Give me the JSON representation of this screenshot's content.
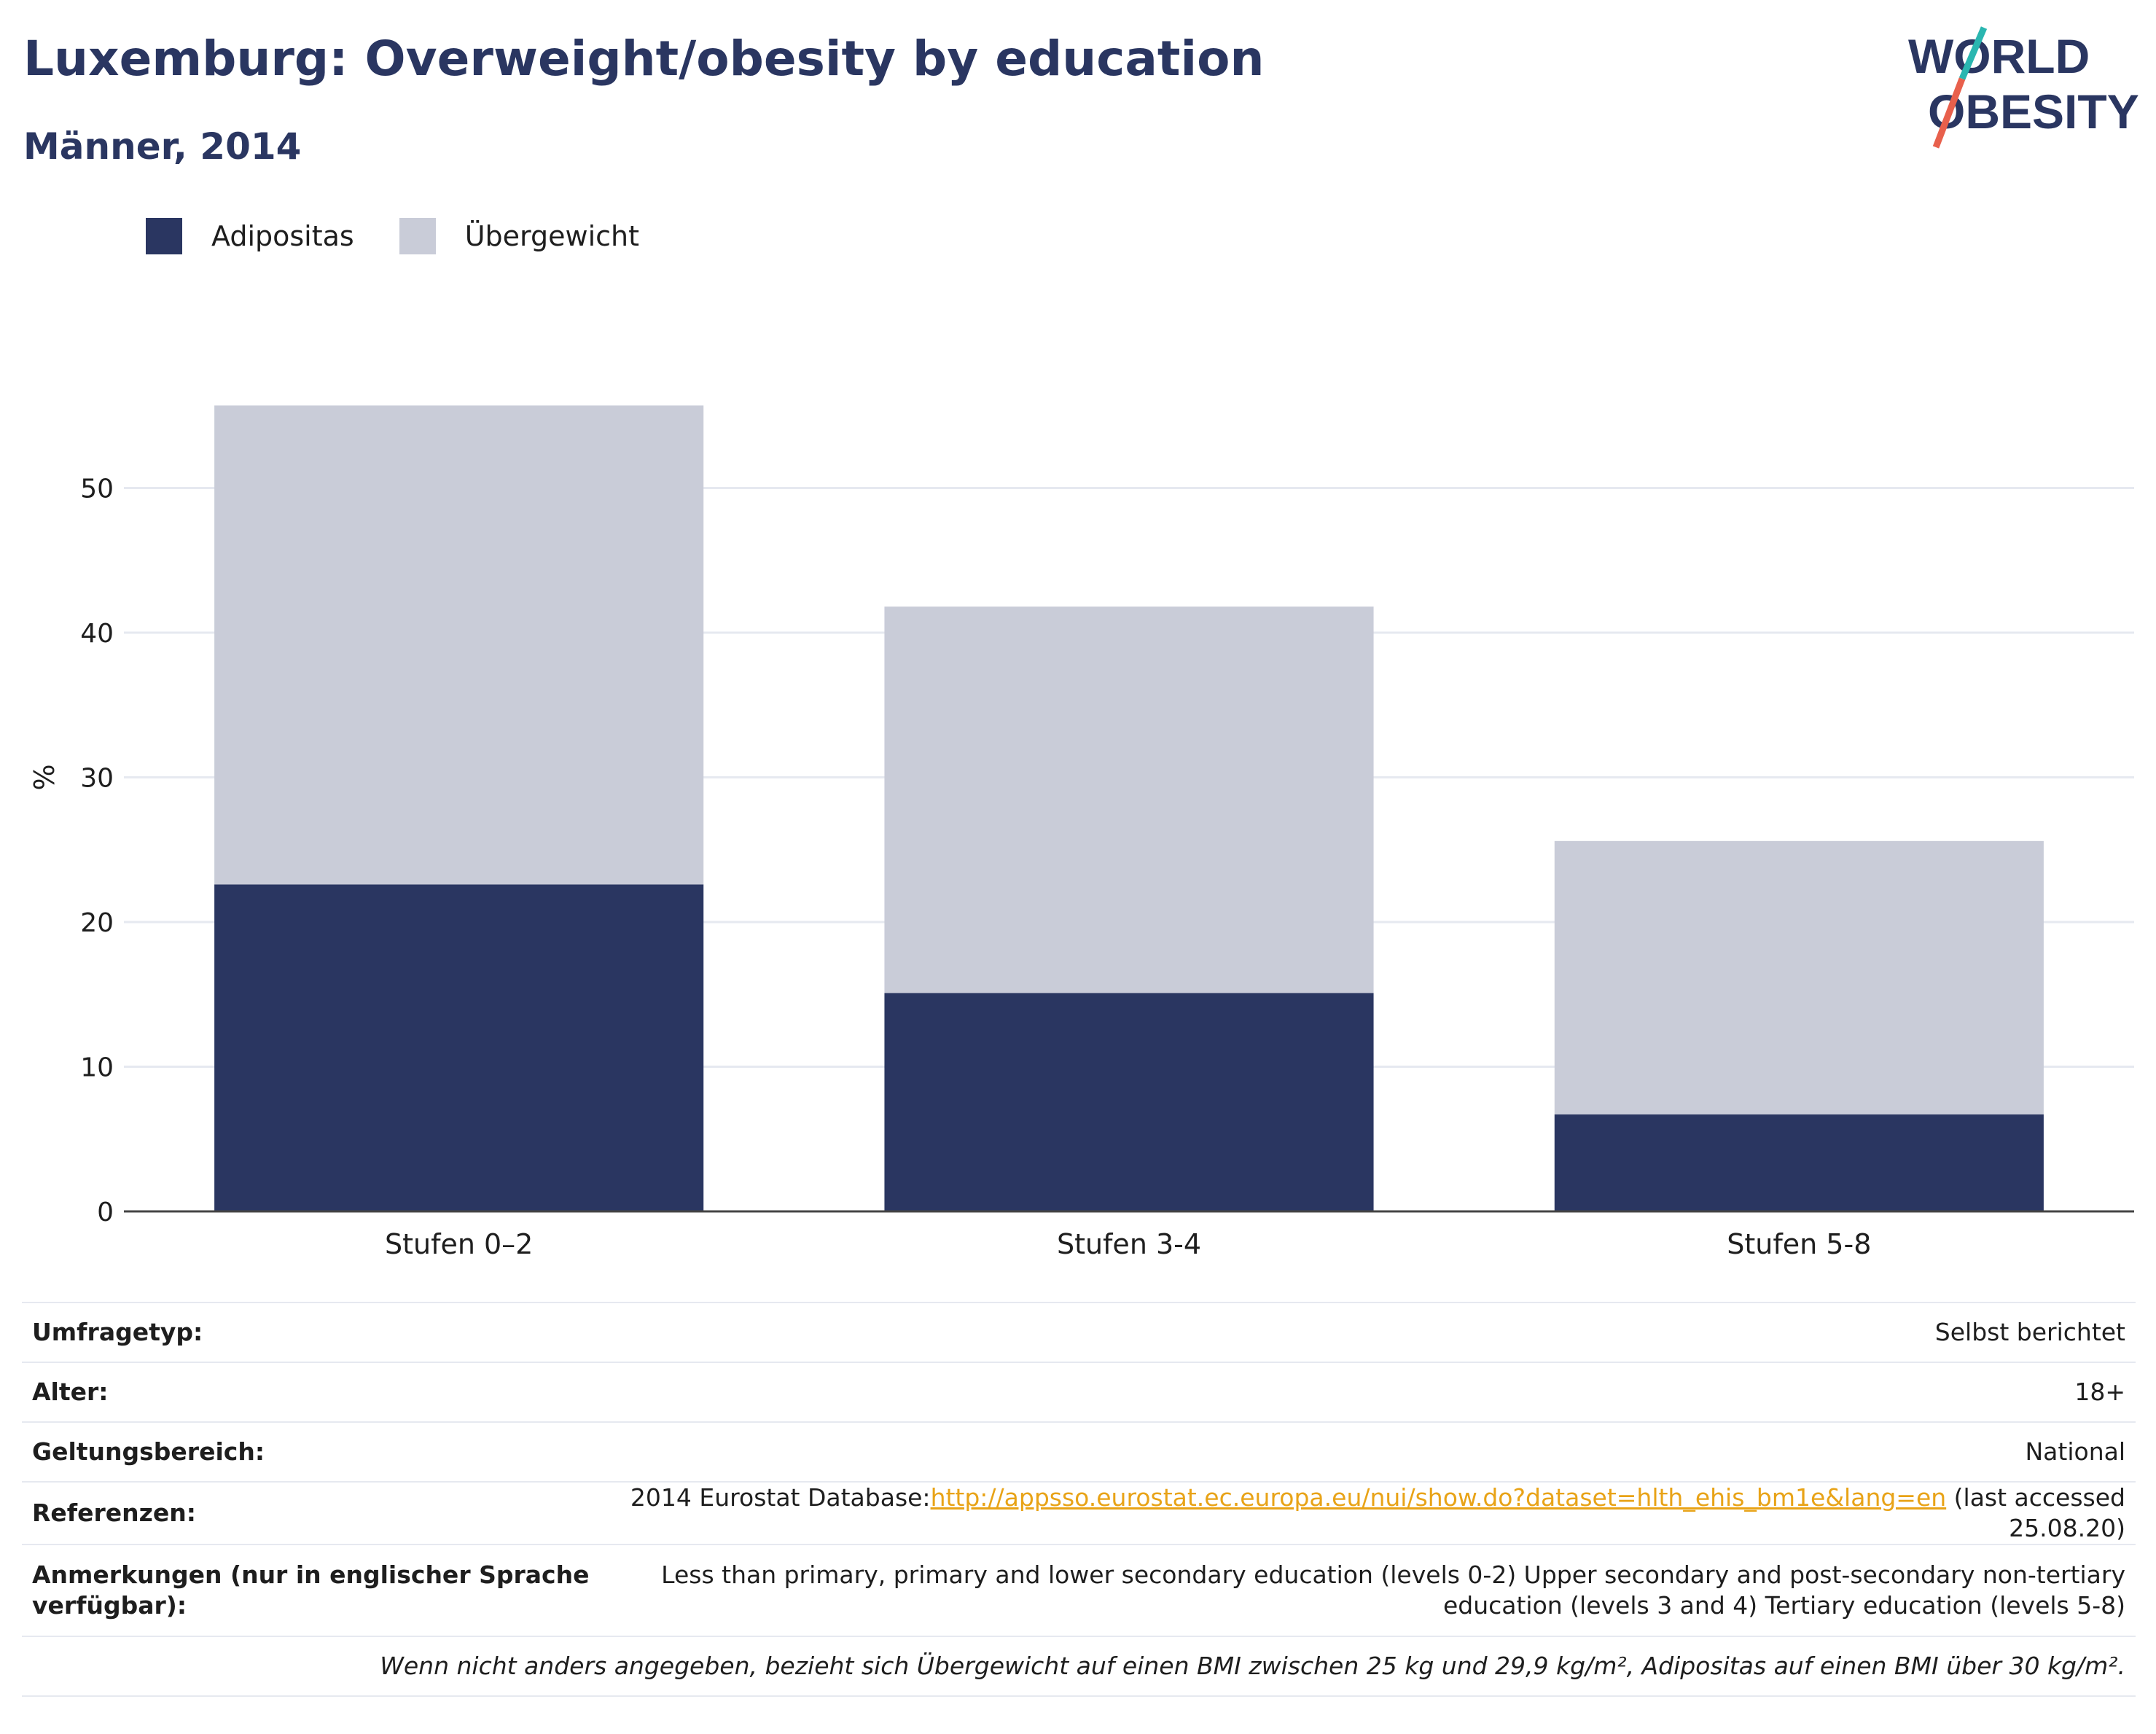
{
  "header": {
    "title": "Luxemburg: Overweight/obesity by education",
    "subtitle": "Männer, 2014"
  },
  "logo": {
    "line1": "WORLD",
    "line2": "OBESITY"
  },
  "colors": {
    "obesity": "#2a3661",
    "overweight": "#c9ccd8",
    "text_dark": "#2a3661",
    "link": "#e8a317",
    "logo_teal": "#2ab6b0",
    "logo_red": "#e8604c"
  },
  "legend": [
    {
      "label": "Adipositas",
      "color": "#2a3661"
    },
    {
      "label": "Übergewicht",
      "color": "#c9ccd8"
    }
  ],
  "chart_data": {
    "type": "bar",
    "stacked": true,
    "categories": [
      "Stufen 0–2",
      "Stufen 3-4",
      "Stufen 5-8"
    ],
    "series": [
      {
        "name": "Adipositas",
        "values": [
          22.6,
          15.1,
          6.7
        ]
      },
      {
        "name": "Übergewicht",
        "values": [
          33.1,
          26.7,
          18.9
        ]
      }
    ],
    "ylabel": "%",
    "ylim": [
      0,
      60
    ],
    "yticks": [
      0,
      10,
      20,
      30,
      40,
      50
    ],
    "grid": true,
    "legend_position": "top-left"
  },
  "info": {
    "survey_label": "Umfragetyp:",
    "survey_value": "Selbst berichtet",
    "age_label": "Alter:",
    "age_value": "18+",
    "scope_label": "Geltungsbereich:",
    "scope_value": "National",
    "ref_label": "Referenzen:",
    "ref_prefix": "2014 Eurostat Database:",
    "ref_link": "http://appsso.eurostat.ec.europa.eu/nui/show.do?dataset=hlth_ehis_bm1e&lang=en",
    "ref_suffix": " (last accessed 25.08.20)",
    "notes_label": "Anmerkungen (nur in englischer Sprache verfügbar):",
    "notes_value": "Less than primary, primary and lower secondary education (levels 0-2) Upper secondary and post-secondary non-tertiary education (levels 3 and 4) Tertiary education (levels 5-8)",
    "bmi_note": "Wenn nicht anders angegeben, bezieht sich Übergewicht auf einen BMI zwischen 25 kg und 29,9 kg/m², Adipositas auf einen BMI über 30 kg/m²."
  }
}
